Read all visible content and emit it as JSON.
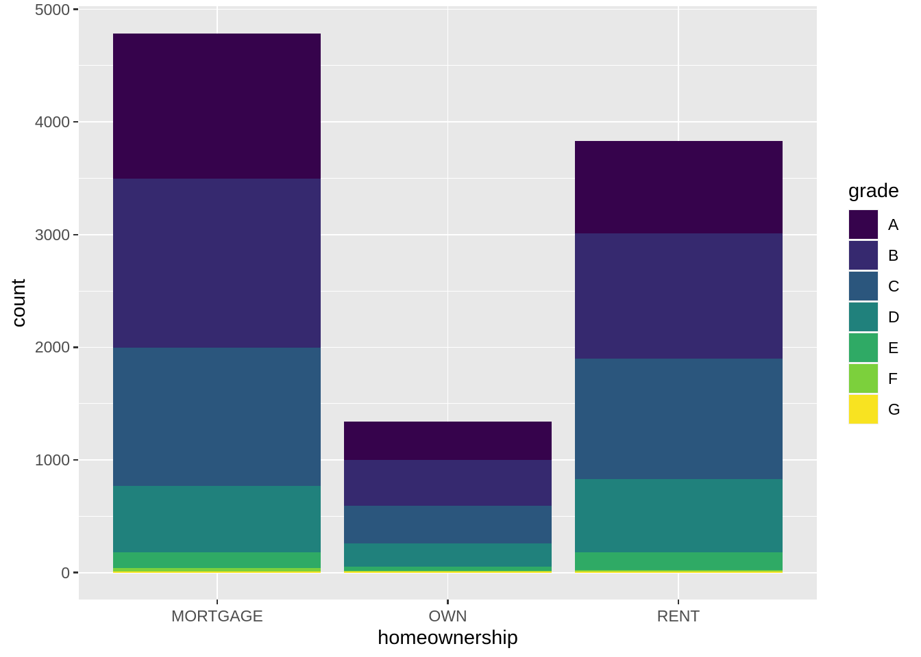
{
  "figure": {
    "background": "#FFFFFF",
    "panel_background": "#E8E8E8",
    "grid_color": "#FFFFFF",
    "tick_mark_color": "#333333",
    "tick_label_color": "#4D4D4D",
    "axis_title_color": "#000000"
  },
  "chart_data": {
    "type": "bar",
    "stacked": true,
    "title": "",
    "xlabel": "homeownership",
    "ylabel": "count",
    "legend_title": "grade",
    "legend_position": "right",
    "grid": true,
    "categories": [
      "MORTGAGE",
      "OWN",
      "RENT"
    ],
    "series": [
      {
        "name": "A",
        "color": "#36034C",
        "values": [
          1288,
          342,
          818
        ]
      },
      {
        "name": "B",
        "color": "#36296F",
        "values": [
          1505,
          410,
          1115
        ]
      },
      {
        "name": "C",
        "color": "#2B567D",
        "values": [
          1228,
          334,
          1070
        ]
      },
      {
        "name": "D",
        "color": "#20817C",
        "values": [
          585,
          207,
          646
        ]
      },
      {
        "name": "E",
        "color": "#2FAA65",
        "values": [
          142,
          32,
          158
        ]
      },
      {
        "name": "F",
        "color": "#7CD03C",
        "values": [
          30,
          10,
          16
        ]
      },
      {
        "name": "G",
        "color": "#F8E321",
        "values": [
          10,
          8,
          8
        ]
      }
    ],
    "stack_order_bottom_to_top": [
      "G",
      "F",
      "E",
      "D",
      "C",
      "B",
      "A"
    ],
    "category_totals": [
      4788,
      1343,
      3831
    ],
    "y_ticks": [
      0,
      1000,
      2000,
      3000,
      4000,
      5000
    ],
    "y_minor_ticks": [
      500,
      1500,
      2500,
      3500,
      4500
    ],
    "ylim": [
      -239,
      5028
    ]
  }
}
